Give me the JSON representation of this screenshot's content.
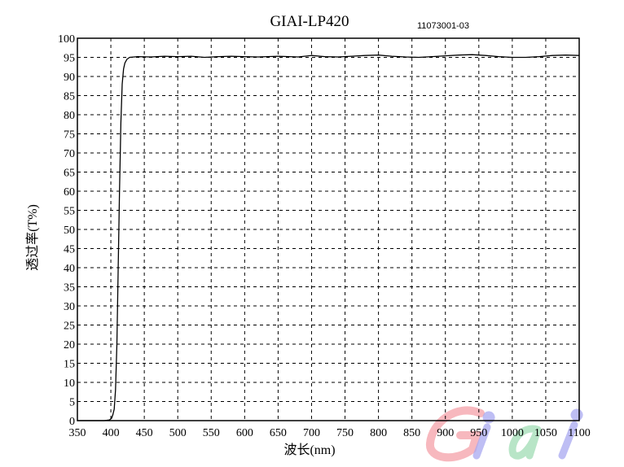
{
  "chart_data": {
    "type": "line",
    "title": "GIAI-LP420",
    "annotation": "11073001-03",
    "xlabel": "波长(nm)",
    "ylabel": "透过率(T%)",
    "xlim": [
      350,
      1100
    ],
    "ylim": [
      0,
      100
    ],
    "xticks": [
      350,
      400,
      450,
      500,
      550,
      600,
      650,
      700,
      750,
      800,
      850,
      900,
      950,
      1000,
      1050,
      1100
    ],
    "yticks": [
      0,
      5,
      10,
      15,
      20,
      25,
      30,
      35,
      40,
      45,
      50,
      55,
      60,
      65,
      70,
      75,
      80,
      85,
      90,
      95,
      100
    ],
    "grid": true,
    "grid_style": "dashed",
    "line_color": "#000000",
    "series": [
      {
        "x": [
          350,
          390,
          398,
          401,
          403,
          405,
          407,
          409,
          411,
          413,
          415,
          417,
          419,
          421,
          424,
          428,
          440,
          460,
          480,
          500,
          520,
          540,
          560,
          580,
          600,
          620,
          650,
          680,
          700,
          720,
          740,
          760,
          780,
          800,
          820,
          840,
          860,
          880,
          900,
          920,
          940,
          960,
          980,
          1000,
          1020,
          1040,
          1060,
          1080,
          1100
        ],
        "y": [
          0,
          0,
          0.2,
          0.6,
          1.5,
          3,
          8,
          20,
          40,
          60,
          78,
          88,
          92,
          93.5,
          94.5,
          95,
          95.2,
          95.1,
          95.3,
          95.2,
          95.3,
          95,
          95.2,
          95.3,
          95.2,
          95.1,
          95.3,
          95.1,
          95.5,
          95.2,
          95.1,
          95.3,
          95.5,
          95.6,
          95.3,
          95.1,
          95,
          95.2,
          95.4,
          95.6,
          95.7,
          95.5,
          95.2,
          95,
          95,
          95.2,
          95.5,
          95.6,
          95.5
        ]
      }
    ]
  },
  "watermark": {
    "text": "Giai",
    "colors": [
      "#f4a0a8",
      "#a8a8f0",
      "#a0dcb4",
      "#a8a8f0"
    ]
  }
}
